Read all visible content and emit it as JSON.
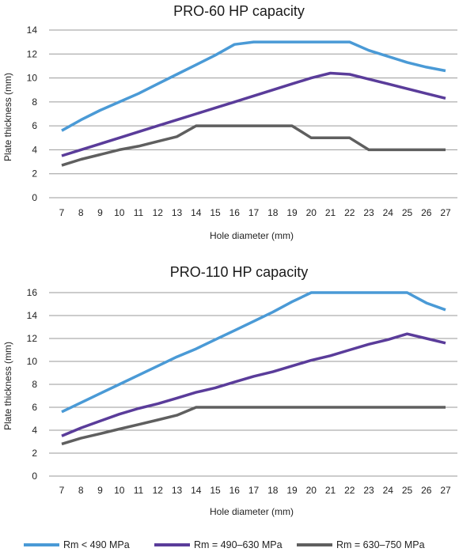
{
  "chart_data": [
    {
      "type": "line",
      "title": "PRO-60 HP capacity",
      "xlabel": "Hole diameter (mm)",
      "ylabel": "Plate thickness (mm)",
      "x": [
        7,
        8,
        9,
        10,
        11,
        12,
        13,
        14,
        15,
        16,
        17,
        18,
        19,
        20,
        21,
        22,
        23,
        24,
        25,
        26,
        27
      ],
      "yticks": [
        0,
        2,
        4,
        6,
        8,
        10,
        12,
        14
      ],
      "ylim": [
        0,
        14
      ],
      "grid": true,
      "series": [
        {
          "name": "Rm < 490 MPa",
          "color": "#4a9ad6",
          "values": [
            5.6,
            6.5,
            7.3,
            8.0,
            8.7,
            9.5,
            10.3,
            11.1,
            11.9,
            12.8,
            13.0,
            13.0,
            13.0,
            13.0,
            13.0,
            13.0,
            12.3,
            11.8,
            11.3,
            10.9,
            10.6
          ]
        },
        {
          "name": "Rm = 490–630 MPa",
          "color": "#5a3c9a",
          "values": [
            3.5,
            4.0,
            4.5,
            5.0,
            5.5,
            6.0,
            6.5,
            7.0,
            7.5,
            8.0,
            8.5,
            9.0,
            9.5,
            10.0,
            10.4,
            10.3,
            9.9,
            9.5,
            9.1,
            8.7,
            8.3
          ]
        },
        {
          "name": "Rm = 630–750 MPa",
          "color": "#5f5f5f",
          "values": [
            2.7,
            3.2,
            3.6,
            4.0,
            4.3,
            4.7,
            5.1,
            6.0,
            6.0,
            6.0,
            6.0,
            6.0,
            6.0,
            5.0,
            5.0,
            5.0,
            4.0,
            4.0,
            4.0,
            4.0,
            4.0
          ]
        }
      ]
    },
    {
      "type": "line",
      "title": "PRO-110 HP capacity",
      "xlabel": "Hole diameter (mm)",
      "ylabel": "Plate thickness (mm)",
      "x": [
        7,
        8,
        9,
        10,
        11,
        12,
        13,
        14,
        15,
        16,
        17,
        18,
        19,
        20,
        21,
        22,
        23,
        24,
        25,
        26,
        27
      ],
      "yticks": [
        0,
        2,
        4,
        6,
        8,
        10,
        12,
        14,
        16
      ],
      "ylim": [
        0,
        16
      ],
      "grid": true,
      "series": [
        {
          "name": "Rm < 490 MPa",
          "color": "#4a9ad6",
          "values": [
            5.6,
            6.4,
            7.2,
            8.0,
            8.8,
            9.6,
            10.4,
            11.1,
            11.9,
            12.7,
            13.5,
            14.3,
            15.2,
            16.0,
            16.0,
            16.0,
            16.0,
            16.0,
            16.0,
            15.1,
            14.5
          ]
        },
        {
          "name": "Rm = 490–630 MPa",
          "color": "#5a3c9a",
          "values": [
            3.5,
            4.2,
            4.8,
            5.4,
            5.9,
            6.3,
            6.8,
            7.3,
            7.7,
            8.2,
            8.7,
            9.1,
            9.6,
            10.1,
            10.5,
            11.0,
            11.5,
            11.9,
            12.4,
            12.0,
            11.6
          ]
        },
        {
          "name": "Rm = 630–750 MPa",
          "color": "#5f5f5f",
          "values": [
            2.8,
            3.3,
            3.7,
            4.1,
            4.5,
            4.9,
            5.3,
            6.0,
            6.0,
            6.0,
            6.0,
            6.0,
            6.0,
            6.0,
            6.0,
            6.0,
            6.0,
            6.0,
            6.0,
            6.0,
            6.0
          ]
        }
      ]
    }
  ],
  "legend": {
    "items": [
      {
        "label": "Rm < 490 MPa",
        "color": "#4a9ad6"
      },
      {
        "label": "Rm = 490–630 MPa",
        "color": "#5a3c9a"
      },
      {
        "label": "Rm = 630–750 MPa",
        "color": "#5f5f5f"
      }
    ]
  }
}
